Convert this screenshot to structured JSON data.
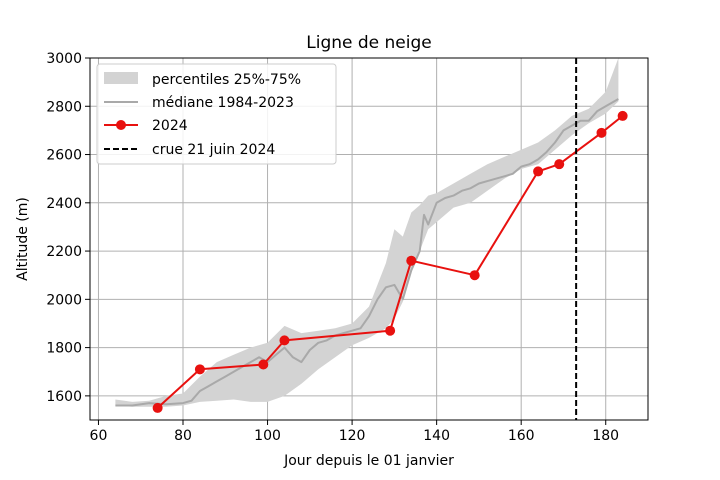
{
  "chart_data": {
    "type": "line",
    "title": "Ligne de neige",
    "xlabel": "Jour depuis le 01 janvier",
    "ylabel": "Altitude (m)",
    "xlim": [
      58,
      190
    ],
    "ylim": [
      1500,
      3000
    ],
    "xticks": [
      60,
      80,
      100,
      120,
      140,
      160,
      180
    ],
    "yticks": [
      1600,
      1800,
      2000,
      2200,
      2400,
      2600,
      2800,
      3000
    ],
    "grid": true,
    "legend_position": "top-left",
    "legend": [
      {
        "label": "percentiles 25%-75%",
        "kind": "band",
        "color": "#d3d3d3"
      },
      {
        "label": "médiane 1984-2023",
        "kind": "line",
        "color": "#a9a9a9"
      },
      {
        "label": "2024",
        "kind": "line-marker",
        "color": "#e8110f"
      },
      {
        "label": "crue 21 juin 2024",
        "kind": "dashed",
        "color": "#000000"
      }
    ],
    "series": [
      {
        "name": "percentiles 25%-75%",
        "type": "band",
        "color": "#d3d3d3",
        "x": [
          64,
          68,
          72,
          76,
          80,
          84,
          88,
          92,
          96,
          100,
          104,
          108,
          112,
          116,
          120,
          124,
          128,
          130,
          132,
          134,
          136,
          138,
          140,
          144,
          148,
          152,
          156,
          160,
          164,
          168,
          172,
          176,
          180,
          183
        ],
        "upper": [
          1585,
          1575,
          1580,
          1600,
          1610,
          1680,
          1740,
          1770,
          1800,
          1820,
          1890,
          1860,
          1870,
          1880,
          1900,
          1970,
          2150,
          2290,
          2260,
          2360,
          2390,
          2430,
          2440,
          2480,
          2520,
          2560,
          2590,
          2620,
          2650,
          2700,
          2760,
          2790,
          2860,
          3000
        ],
        "lower": [
          1560,
          1555,
          1555,
          1555,
          1560,
          1575,
          1580,
          1585,
          1575,
          1575,
          1600,
          1650,
          1710,
          1760,
          1810,
          1840,
          1880,
          1920,
          1990,
          2110,
          2200,
          2290,
          2320,
          2380,
          2400,
          2450,
          2500,
          2540,
          2560,
          2620,
          2680,
          2730,
          2770,
          2820
        ]
      },
      {
        "name": "médiane 1984-2023",
        "type": "line",
        "color": "#a9a9a9",
        "x": [
          64,
          68,
          72,
          76,
          80,
          82,
          84,
          86,
          88,
          90,
          92,
          94,
          96,
          98,
          100,
          102,
          104,
          106,
          108,
          110,
          112,
          114,
          116,
          118,
          120,
          122,
          124,
          126,
          128,
          130,
          132,
          134,
          136,
          137,
          138,
          140,
          142,
          144,
          146,
          148,
          150,
          152,
          154,
          156,
          158,
          160,
          162,
          164,
          166,
          168,
          170,
          172,
          174,
          176,
          178,
          180,
          182,
          183
        ],
        "y": [
          1560,
          1560,
          1570,
          1565,
          1570,
          1580,
          1620,
          1640,
          1660,
          1680,
          1700,
          1720,
          1740,
          1760,
          1740,
          1770,
          1800,
          1760,
          1740,
          1790,
          1820,
          1830,
          1850,
          1860,
          1870,
          1880,
          1930,
          2000,
          2050,
          2060,
          2000,
          2120,
          2200,
          2350,
          2310,
          2400,
          2420,
          2430,
          2450,
          2460,
          2480,
          2490,
          2500,
          2510,
          2520,
          2550,
          2560,
          2580,
          2610,
          2650,
          2700,
          2720,
          2740,
          2740,
          2780,
          2800,
          2820,
          2830
        ]
      },
      {
        "name": "2024",
        "type": "line-marker",
        "color": "#e8110f",
        "x": [
          74,
          84,
          99,
          104,
          129,
          134,
          149,
          164,
          169,
          179,
          184
        ],
        "y": [
          1550,
          1710,
          1730,
          1830,
          1870,
          2160,
          2100,
          2530,
          2560,
          2690,
          2760
        ]
      }
    ],
    "vline": {
      "name": "crue 21 juin 2024",
      "x": 173,
      "color": "#000000",
      "style": "dashed"
    }
  }
}
